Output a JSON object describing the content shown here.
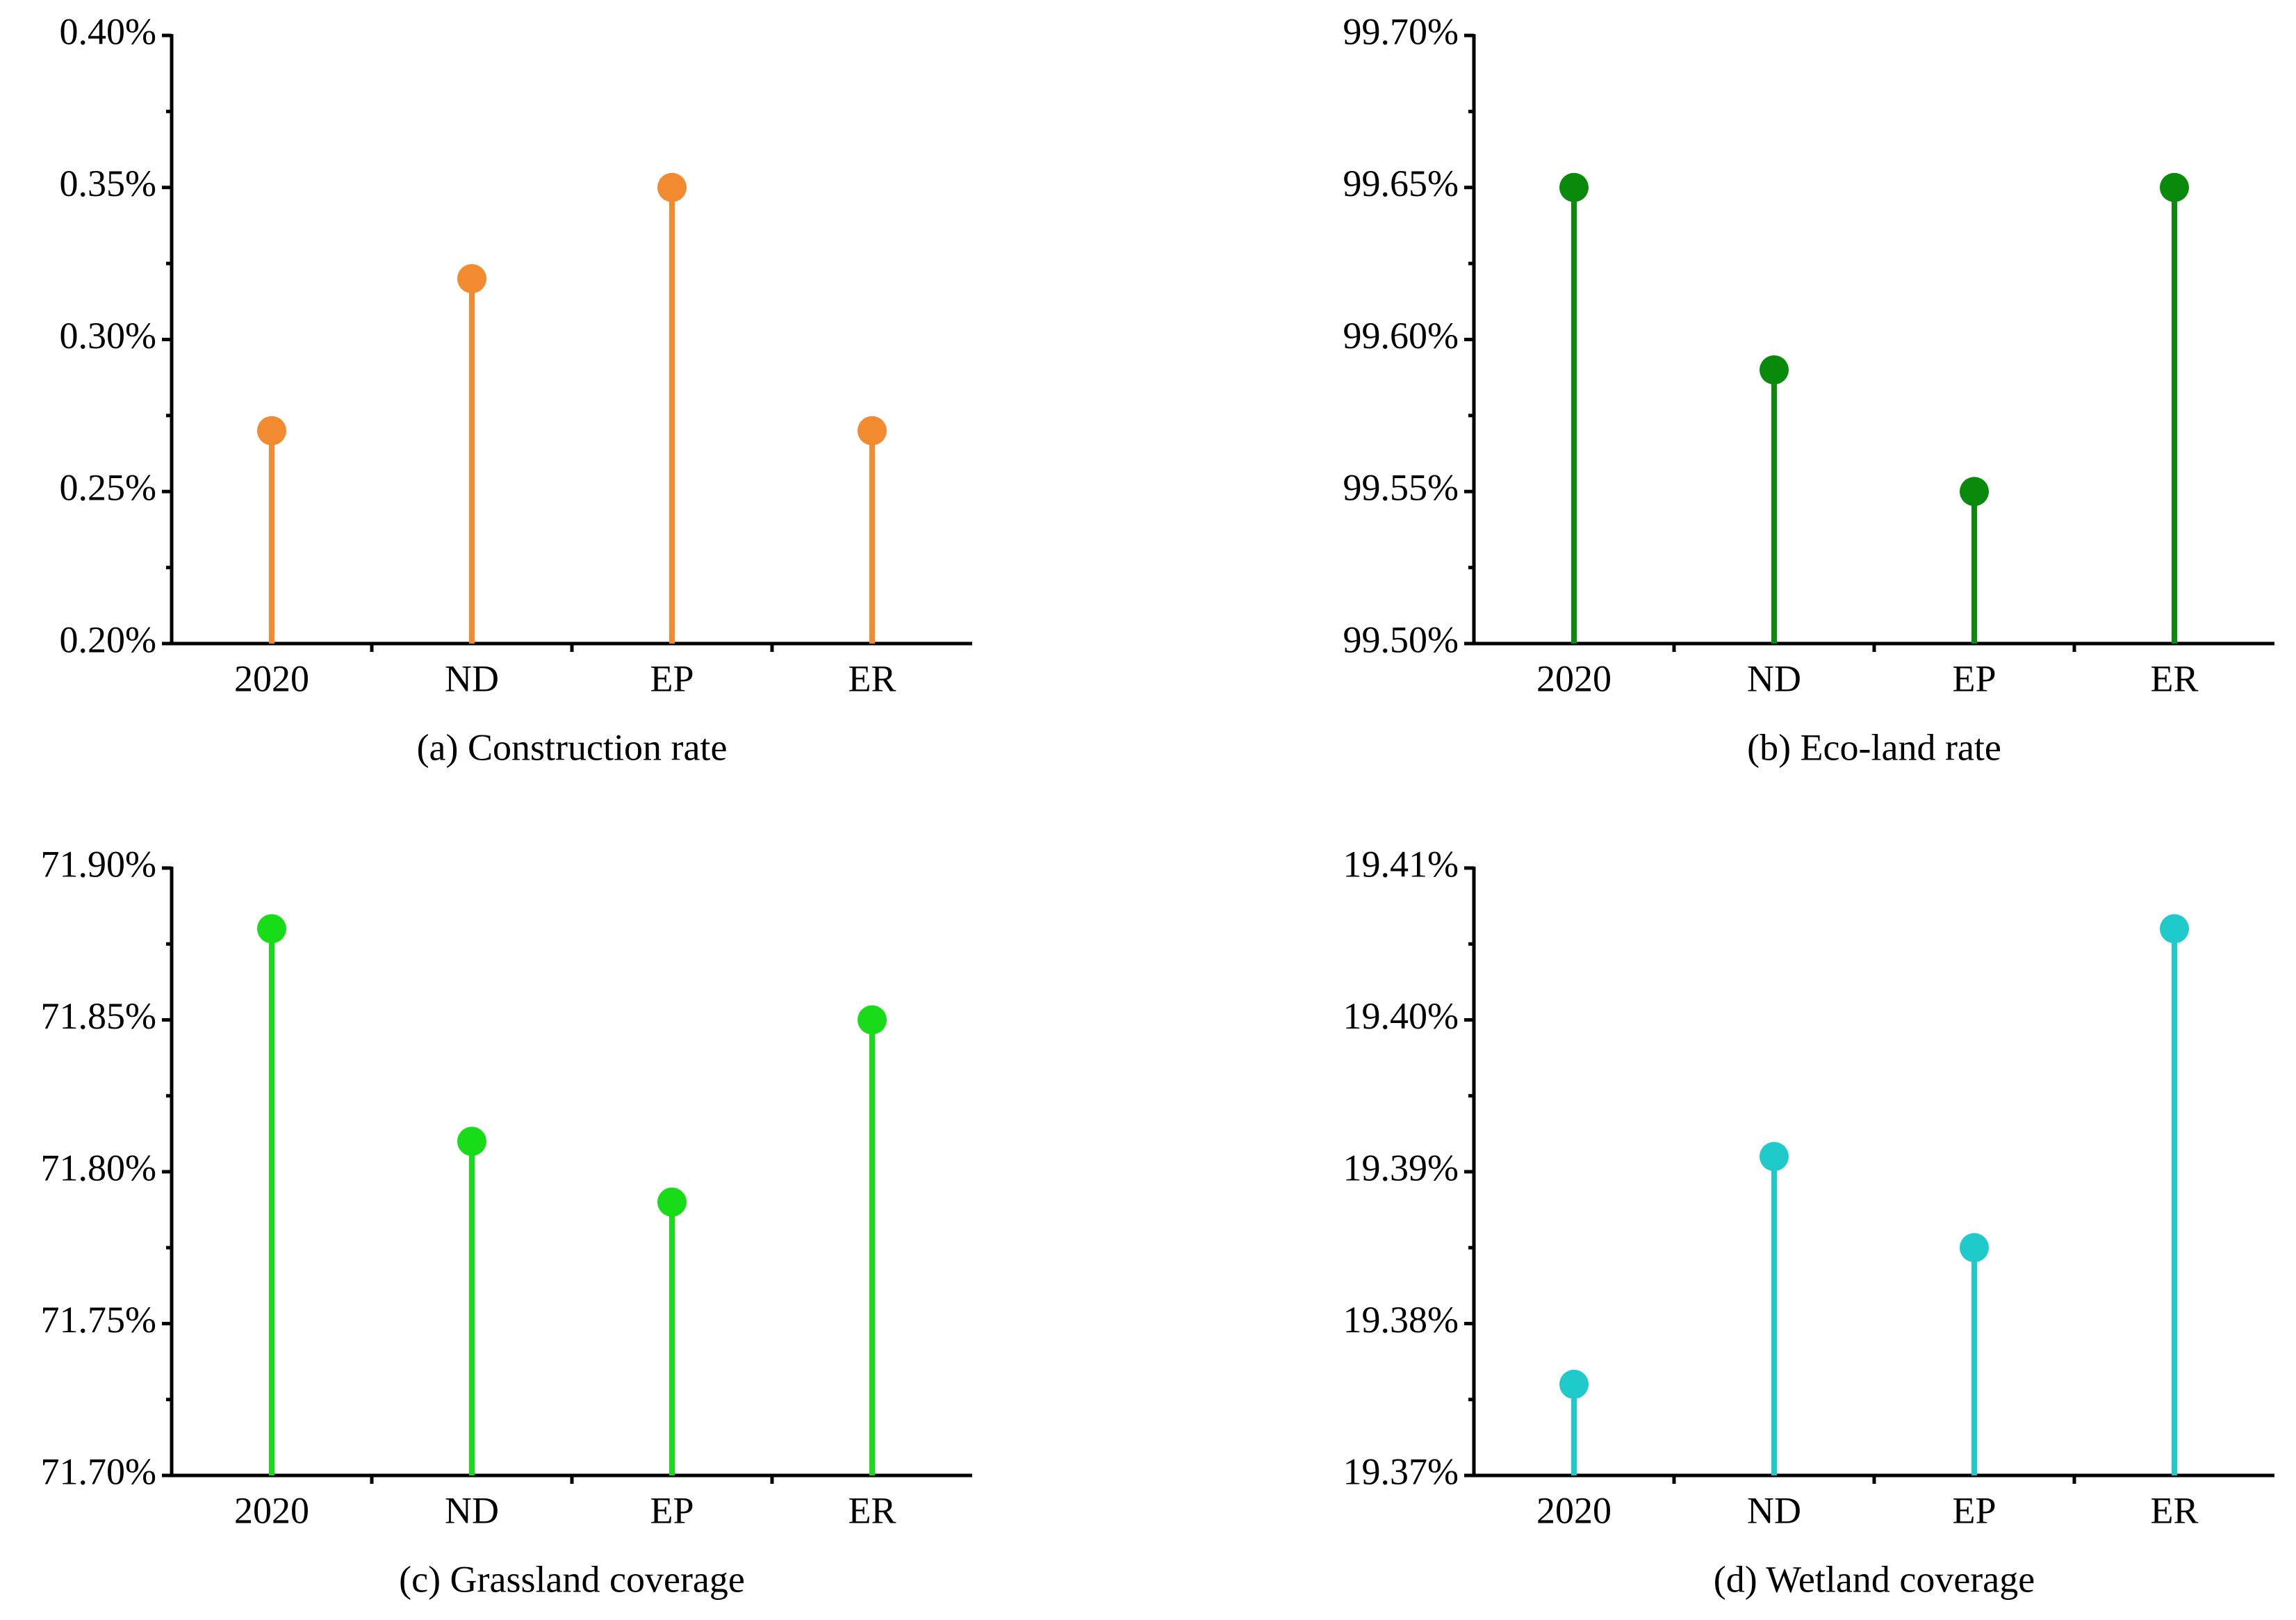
{
  "chart_data": [
    {
      "type": "lollipop",
      "title": "(a) Construction rate",
      "categories": [
        "2020",
        "ND",
        "EP",
        "ER"
      ],
      "values": [
        0.27,
        0.32,
        0.35,
        0.27
      ],
      "color": "#f28a30",
      "ylim": [
        0.2,
        0.4
      ],
      "yticks": [
        {
          "value": 0.2,
          "label": "0.20%"
        },
        {
          "value": 0.25,
          "label": "0.25%"
        },
        {
          "value": 0.3,
          "label": "0.30%"
        },
        {
          "value": 0.35,
          "label": "0.35%"
        },
        {
          "value": 0.4,
          "label": "0.40%"
        }
      ]
    },
    {
      "type": "lollipop",
      "title": "(b) Eco-land rate",
      "categories": [
        "2020",
        "ND",
        "EP",
        "ER"
      ],
      "values": [
        99.65,
        99.59,
        99.55,
        99.65
      ],
      "color": "#0a8a0a",
      "ylim": [
        99.5,
        99.7
      ],
      "yticks": [
        {
          "value": 99.5,
          "label": "99.50%"
        },
        {
          "value": 99.55,
          "label": "99.55%"
        },
        {
          "value": 99.6,
          "label": "99.60%"
        },
        {
          "value": 99.65,
          "label": "99.65%"
        },
        {
          "value": 99.7,
          "label": "99.70%"
        }
      ]
    },
    {
      "type": "lollipop",
      "title": "(c) Grassland coverage",
      "categories": [
        "2020",
        "ND",
        "EP",
        "ER"
      ],
      "values": [
        71.88,
        71.81,
        71.79,
        71.85
      ],
      "color": "#19dc19",
      "ylim": [
        71.7,
        71.9
      ],
      "yticks": [
        {
          "value": 71.7,
          "label": "71.70%"
        },
        {
          "value": 71.75,
          "label": "71.75%"
        },
        {
          "value": 71.8,
          "label": "71.80%"
        },
        {
          "value": 71.85,
          "label": "71.85%"
        },
        {
          "value": 71.9,
          "label": "71.90%"
        }
      ]
    },
    {
      "type": "lollipop",
      "title": "(d) Wetland coverage",
      "categories": [
        "2020",
        "ND",
        "EP",
        "ER"
      ],
      "values": [
        19.376,
        19.391,
        19.385,
        19.406
      ],
      "color": "#1ecaca",
      "ylim": [
        19.37,
        19.41
      ],
      "yticks": [
        {
          "value": 19.37,
          "label": "19.37%"
        },
        {
          "value": 19.38,
          "label": "19.38%"
        },
        {
          "value": 19.39,
          "label": "19.39%"
        },
        {
          "value": 19.4,
          "label": "19.40%"
        },
        {
          "value": 19.41,
          "label": "19.41%"
        }
      ]
    }
  ]
}
